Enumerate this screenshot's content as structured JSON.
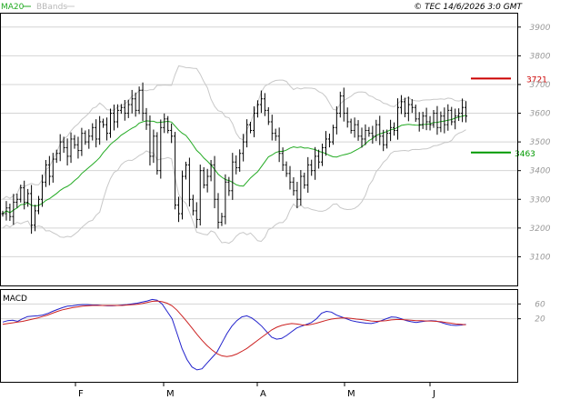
{
  "header": {
    "ma_label": "MA20",
    "bb_label": "BBands",
    "source_label": "© TEC 14/6/2026 3:0 GMT"
  },
  "colors": {
    "price_bars": "#000000",
    "ma": "#22aa22",
    "bbands": "#c8c8c8",
    "grid": "#d4d4d4",
    "macd_line": "#2222cc",
    "signal_line": "#cc2222",
    "resistance": "#cc0000",
    "support": "#009900",
    "axis_text": "#999999"
  },
  "chart_data": [
    {
      "type": "ohlc",
      "ylim": [
        3000,
        3950
      ],
      "yticks": [
        3100,
        3200,
        3300,
        3400,
        3500,
        3600,
        3700,
        3800,
        3900
      ],
      "ytick_labels": [
        "3100",
        "3200",
        "3300",
        "3400",
        "3500",
        "3600",
        "3700",
        "3800",
        "3900"
      ],
      "xticks": [
        "F",
        "M",
        "A",
        "M",
        "J"
      ],
      "close": [
        3250,
        3270,
        3240,
        3290,
        3300,
        3340,
        3290,
        3320,
        3210,
        3260,
        3300,
        3360,
        3420,
        3380,
        3440,
        3460,
        3500,
        3480,
        3450,
        3510,
        3490,
        3470,
        3530,
        3500,
        3520,
        3550,
        3510,
        3570,
        3560,
        3530,
        3600,
        3570,
        3610,
        3620,
        3600,
        3630,
        3650,
        3610,
        3680,
        3600,
        3560,
        3450,
        3520,
        3400,
        3550,
        3580,
        3540,
        3520,
        3280,
        3250,
        3380,
        3420,
        3300,
        3260,
        3230,
        3400,
        3350,
        3380,
        3420,
        3300,
        3220,
        3240,
        3360,
        3330,
        3430,
        3410,
        3460,
        3500,
        3560,
        3540,
        3600,
        3630,
        3650,
        3610,
        3570,
        3530,
        3520,
        3460,
        3420,
        3390,
        3360,
        3330,
        3300,
        3380,
        3350,
        3420,
        3400,
        3450,
        3430,
        3480,
        3510,
        3500,
        3550,
        3600,
        3660,
        3600,
        3570,
        3540,
        3560,
        3520,
        3510,
        3540,
        3530,
        3520,
        3560,
        3520,
        3490,
        3530,
        3550,
        3540,
        3620,
        3640,
        3600,
        3630,
        3620,
        3580,
        3560,
        3590,
        3570,
        3560,
        3600,
        3550,
        3590,
        3560,
        3610,
        3570,
        3590,
        3600,
        3620,
        3590
      ],
      "resistance": 3721,
      "support": 3463,
      "resistance_label": "3721",
      "support_label": "3463",
      "ma_period": 20,
      "bb_period": 20,
      "bb_stdev": 2
    },
    {
      "type": "line",
      "title": "MACD",
      "ylim": [
        -150,
        100
      ],
      "yticks": [
        20,
        60
      ],
      "ytick_labels": [
        "20",
        "60"
      ],
      "series": [
        {
          "role": "macd",
          "values": [
            11,
            15,
            16,
            13,
            20,
            26,
            27,
            28,
            30,
            34,
            40,
            45,
            50,
            54,
            55,
            57,
            58,
            58,
            57,
            57,
            56,
            55,
            55,
            56,
            57,
            58,
            60,
            62,
            65,
            68,
            72,
            70,
            60,
            40,
            20,
            -20,
            -60,
            -90,
            -110,
            -118,
            -115,
            -100,
            -85,
            -70,
            -45,
            -20,
            0,
            15,
            25,
            28,
            22,
            12,
            0,
            -15,
            -30,
            -35,
            -33,
            -25,
            -15,
            -5,
            0,
            5,
            10,
            20,
            35,
            40,
            38,
            30,
            25,
            20,
            15,
            12,
            10,
            8,
            7,
            10,
            15,
            20,
            25,
            24,
            20,
            15,
            12,
            10,
            12,
            14,
            15,
            14,
            10,
            6,
            3,
            2,
            3,
            5
          ]
        },
        {
          "role": "signal",
          "values": [
            5,
            7,
            9,
            11,
            13,
            16,
            19,
            22,
            26,
            30,
            35,
            40,
            44,
            47,
            50,
            52,
            54,
            55,
            56,
            56,
            56,
            56,
            56,
            56,
            56,
            57,
            58,
            59,
            61,
            64,
            67,
            68,
            66,
            62,
            55,
            43,
            28,
            12,
            -5,
            -22,
            -38,
            -52,
            -64,
            -74,
            -80,
            -82,
            -80,
            -75,
            -68,
            -60,
            -50,
            -40,
            -30,
            -20,
            -10,
            -3,
            2,
            5,
            7,
            6,
            4,
            3,
            5,
            8,
            12,
            16,
            19,
            21,
            22,
            22,
            21,
            19,
            18,
            16,
            14,
            13,
            14,
            15,
            17,
            18,
            18,
            17,
            16,
            15,
            15,
            14,
            14,
            13,
            12,
            10,
            8,
            6,
            5,
            4
          ]
        }
      ]
    }
  ]
}
